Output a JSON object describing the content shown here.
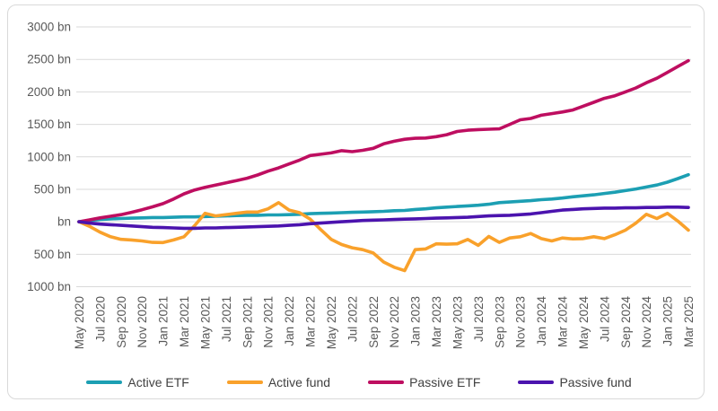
{
  "chart_data": {
    "type": "line",
    "title": "",
    "xlabel": "",
    "ylabel": "",
    "unit": "bn",
    "grid": "horizontal",
    "legend_position": "bottom",
    "ylim": [
      -1000,
      3000
    ],
    "y_tick_values": [
      3000,
      2500,
      2000,
      1500,
      1000,
      500,
      0,
      -500,
      -1000
    ],
    "y_tick_labels": [
      "3000 bn",
      "2500 bn",
      "2000 bn",
      "1500 bn",
      "1000 bn",
      "500 bn",
      "bn",
      "500 bn",
      "1000 bn"
    ],
    "x_tick_every": 2,
    "x_tick_labels_shown": [
      "May 2020",
      "Jul 2020",
      "Sep 2020",
      "Nov 2020",
      "Jan 2021",
      "Mar 2021",
      "May 2021",
      "Jul 2021",
      "Sep 2021",
      "Nov 2021",
      "Jan 2022",
      "Mar 2022",
      "May 2022",
      "Jul 2022",
      "Sep 2022",
      "Nov 2022",
      "Jan 2023",
      "Mar 2023",
      "May 2023",
      "Jul 2023",
      "Sep 2023",
      "Nov 2023",
      "Jan 2024",
      "Mar 2024",
      "May 2024",
      "Jul 2024",
      "Sep 2024",
      "Nov 2024",
      "Jan 2025",
      "Mar 2025"
    ],
    "x": [
      "May 2020",
      "Jun 2020",
      "Jul 2020",
      "Aug 2020",
      "Sep 2020",
      "Oct 2020",
      "Nov 2020",
      "Dec 2020",
      "Jan 2021",
      "Feb 2021",
      "Mar 2021",
      "Apr 2021",
      "May 2021",
      "Jun 2021",
      "Jul 2021",
      "Aug 2021",
      "Sep 2021",
      "Oct 2021",
      "Nov 2021",
      "Dec 2021",
      "Jan 2022",
      "Feb 2022",
      "Mar 2022",
      "Apr 2022",
      "May 2022",
      "Jun 2022",
      "Jul 2022",
      "Aug 2022",
      "Sep 2022",
      "Oct 2022",
      "Nov 2022",
      "Dec 2022",
      "Jan 2023",
      "Feb 2023",
      "Mar 2023",
      "Apr 2023",
      "May 2023",
      "Jun 2023",
      "Jul 2023",
      "Aug 2023",
      "Sep 2023",
      "Oct 2023",
      "Nov 2023",
      "Dec 2023",
      "Jan 2024",
      "Feb 2024",
      "Mar 2024",
      "Apr 2024",
      "May 2024",
      "Jun 2024",
      "Jul 2024",
      "Aug 2024",
      "Sep 2024",
      "Oct 2024",
      "Nov 2024",
      "Dec 2024",
      "Jan 2025",
      "Feb 2025",
      "Mar 2025"
    ],
    "series": [
      {
        "name": "Active ETF",
        "color": "#1c9fb3",
        "values": [
          0,
          20,
          35,
          45,
          50,
          55,
          60,
          65,
          65,
          70,
          75,
          75,
          80,
          85,
          90,
          95,
          100,
          100,
          105,
          105,
          110,
          115,
          125,
          130,
          135,
          140,
          145,
          150,
          155,
          160,
          170,
          175,
          190,
          200,
          215,
          225,
          235,
          245,
          255,
          270,
          295,
          305,
          315,
          325,
          340,
          350,
          365,
          385,
          400,
          415,
          435,
          455,
          480,
          505,
          535,
          565,
          610,
          665,
          725
        ]
      },
      {
        "name": "Active fund",
        "color": "#f9a12b",
        "values": [
          0,
          -70,
          -160,
          -230,
          -270,
          -280,
          -295,
          -318,
          -320,
          -280,
          -230,
          -60,
          130,
          90,
          110,
          130,
          150,
          150,
          200,
          295,
          180,
          140,
          40,
          -120,
          -270,
          -350,
          -400,
          -430,
          -480,
          -620,
          -700,
          -752,
          -430,
          -418,
          -340,
          -345,
          -340,
          -272,
          -363,
          -226,
          -318,
          -250,
          -230,
          -181,
          -260,
          -295,
          -250,
          -263,
          -260,
          -230,
          -260,
          -200,
          -130,
          -20,
          115,
          50,
          130,
          10,
          -130
        ]
      },
      {
        "name": "Passive ETF",
        "color": "#be0e60",
        "values": [
          0,
          30,
          60,
          85,
          110,
          145,
          185,
          230,
          280,
          350,
          430,
          490,
          530,
          565,
          600,
          635,
          670,
          720,
          780,
          830,
          890,
          950,
          1020,
          1040,
          1060,
          1095,
          1080,
          1100,
          1130,
          1200,
          1240,
          1270,
          1285,
          1290,
          1310,
          1340,
          1390,
          1410,
          1420,
          1425,
          1430,
          1500,
          1570,
          1590,
          1640,
          1665,
          1690,
          1720,
          1780,
          1840,
          1900,
          1940,
          2000,
          2060,
          2140,
          2210,
          2300,
          2390,
          2480
        ]
      },
      {
        "name": "Passive fund",
        "color": "#4b13ae",
        "values": [
          0,
          -20,
          -35,
          -45,
          -55,
          -65,
          -75,
          -85,
          -90,
          -95,
          -100,
          -100,
          -95,
          -95,
          -90,
          -85,
          -80,
          -75,
          -70,
          -65,
          -55,
          -45,
          -30,
          -20,
          -10,
          0,
          10,
          20,
          25,
          30,
          35,
          40,
          45,
          50,
          55,
          60,
          65,
          70,
          80,
          90,
          95,
          100,
          110,
          120,
          140,
          160,
          180,
          190,
          200,
          205,
          210,
          210,
          215,
          215,
          220,
          220,
          225,
          225,
          220
        ]
      }
    ]
  },
  "colors": {
    "grid": "#d9d9d9",
    "border": "#d9d9d9",
    "axis_text": "#595959",
    "legend_text": "#404040",
    "background": "#ffffff"
  }
}
